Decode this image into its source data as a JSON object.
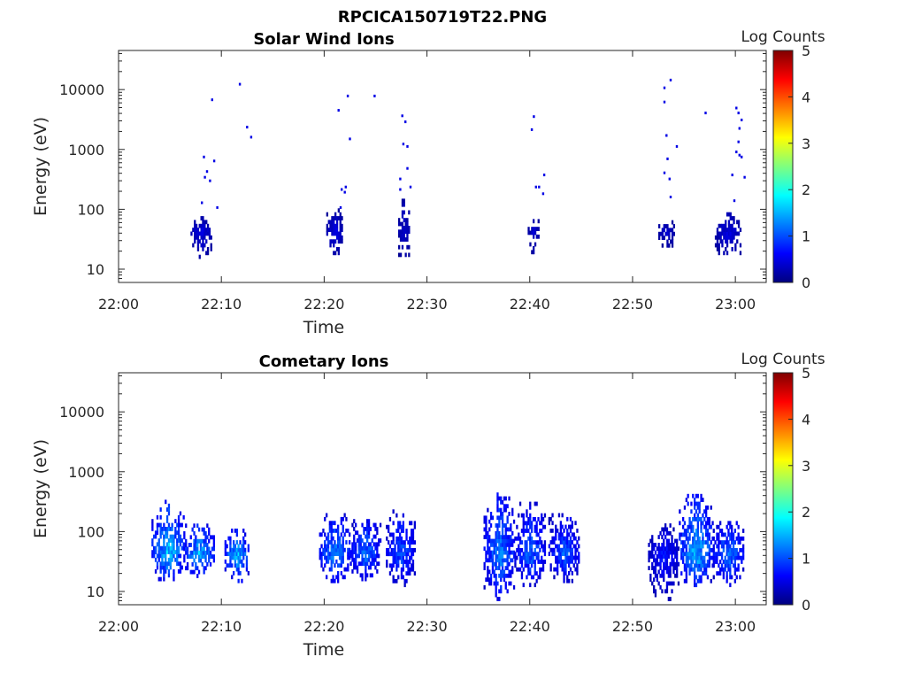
{
  "figure": {
    "title": "RPCICA150719T22.PNG"
  },
  "colormap": {
    "name": "jet",
    "stops": [
      "#00007f",
      "#0000ff",
      "#007fff",
      "#00ffff",
      "#7fff7f",
      "#ffff00",
      "#ff7f00",
      "#ff0000",
      "#7f0000"
    ]
  },
  "chart_data": [
    {
      "type": "heatmap",
      "title": "Solar Wind Ions",
      "xlabel": "Time",
      "ylabel": "Energy (eV)",
      "x_range_minutes": [
        0,
        63
      ],
      "x_ticks": [
        "22:00",
        "22:10",
        "22:20",
        "22:30",
        "22:40",
        "22:50",
        "23:00"
      ],
      "x_tick_minutes": [
        0,
        10,
        20,
        30,
        40,
        50,
        60
      ],
      "y_scale": "log",
      "y_range_eV": [
        6,
        45000
      ],
      "y_ticks": [
        "10",
        "100",
        "1000",
        "10000"
      ],
      "y_tick_values": [
        10,
        100,
        1000,
        10000
      ],
      "colorbar": {
        "label": "Log Counts",
        "range": [
          0,
          5
        ],
        "ticks": [
          "0",
          "1",
          "2",
          "3",
          "4",
          "5"
        ]
      },
      "clusters": [
        {
          "t_start": 7.0,
          "t_end": 9.0,
          "e_low": 15,
          "e_high": 70,
          "peak_log": 0.6
        },
        {
          "t_start": 20.2,
          "t_end": 21.8,
          "e_low": 15,
          "e_high": 90,
          "peak_log": 0.6
        },
        {
          "t_start": 27.2,
          "t_end": 28.2,
          "e_low": 12,
          "e_high": 150,
          "peak_log": 0.5
        },
        {
          "t_start": 39.8,
          "t_end": 40.8,
          "e_low": 18,
          "e_high": 70,
          "peak_log": 0.5
        },
        {
          "t_start": 52.5,
          "t_end": 54.0,
          "e_low": 20,
          "e_high": 60,
          "peak_log": 0.5
        },
        {
          "t_start": 58.0,
          "t_end": 60.5,
          "e_low": 15,
          "e_high": 80,
          "peak_log": 0.6
        }
      ],
      "points": [
        {
          "t": 8.2,
          "e": 700,
          "log": 0.5
        },
        {
          "t": 8.5,
          "e": 400,
          "log": 0.5
        },
        {
          "t": 8.8,
          "e": 280,
          "log": 0.5
        },
        {
          "t": 9.0,
          "e": 6300,
          "log": 0.5
        },
        {
          "t": 9.2,
          "e": 600,
          "log": 0.5
        },
        {
          "t": 9.5,
          "e": 100,
          "log": 0.5
        },
        {
          "t": 11.7,
          "e": 11500,
          "log": 0.5
        },
        {
          "t": 12.4,
          "e": 2200,
          "log": 0.5
        },
        {
          "t": 12.8,
          "e": 1500,
          "log": 0.5
        },
        {
          "t": 8.3,
          "e": 320,
          "log": 0.5
        },
        {
          "t": 8.0,
          "e": 120,
          "log": 0.5
        },
        {
          "t": 21.3,
          "e": 4200,
          "log": 0.5
        },
        {
          "t": 21.6,
          "e": 200,
          "log": 0.5
        },
        {
          "t": 21.9,
          "e": 180,
          "log": 0.5
        },
        {
          "t": 22.2,
          "e": 7300,
          "log": 0.5
        },
        {
          "t": 22.4,
          "e": 1400,
          "log": 0.5
        },
        {
          "t": 22.0,
          "e": 220,
          "log": 0.5
        },
        {
          "t": 24.8,
          "e": 7300,
          "log": 0.5
        },
        {
          "t": 21.5,
          "e": 100,
          "log": 0.5
        },
        {
          "t": 27.5,
          "e": 3400,
          "log": 0.5
        },
        {
          "t": 27.8,
          "e": 2700,
          "log": 0.5
        },
        {
          "t": 27.6,
          "e": 1150,
          "log": 0.5
        },
        {
          "t": 28.0,
          "e": 1050,
          "log": 0.5
        },
        {
          "t": 28.0,
          "e": 450,
          "log": 0.5
        },
        {
          "t": 28.3,
          "e": 220,
          "log": 0.5
        },
        {
          "t": 27.3,
          "e": 300,
          "log": 0.5
        },
        {
          "t": 27.3,
          "e": 200,
          "log": 0.5
        },
        {
          "t": 40.3,
          "e": 3300,
          "log": 0.5
        },
        {
          "t": 40.1,
          "e": 2000,
          "log": 0.5
        },
        {
          "t": 40.5,
          "e": 220,
          "log": 0.5
        },
        {
          "t": 40.8,
          "e": 220,
          "log": 0.5
        },
        {
          "t": 41.3,
          "e": 350,
          "log": 0.5
        },
        {
          "t": 41.2,
          "e": 170,
          "log": 0.5
        },
        {
          "t": 53.0,
          "e": 10000,
          "log": 0.5
        },
        {
          "t": 53.6,
          "e": 13500,
          "log": 0.5
        },
        {
          "t": 53.0,
          "e": 5800,
          "log": 0.5
        },
        {
          "t": 53.2,
          "e": 1600,
          "log": 0.5
        },
        {
          "t": 54.2,
          "e": 1050,
          "log": 0.5
        },
        {
          "t": 53.3,
          "e": 650,
          "log": 0.5
        },
        {
          "t": 53.0,
          "e": 380,
          "log": 0.5
        },
        {
          "t": 53.5,
          "e": 300,
          "log": 0.5
        },
        {
          "t": 53.6,
          "e": 150,
          "log": 0.5
        },
        {
          "t": 57.0,
          "e": 3800,
          "log": 0.5
        },
        {
          "t": 60.0,
          "e": 4600,
          "log": 0.5
        },
        {
          "t": 60.2,
          "e": 3800,
          "log": 0.5
        },
        {
          "t": 60.5,
          "e": 2900,
          "log": 0.5
        },
        {
          "t": 60.3,
          "e": 2100,
          "log": 0.5
        },
        {
          "t": 60.2,
          "e": 1250,
          "log": 0.5
        },
        {
          "t": 60.0,
          "e": 850,
          "log": 0.5
        },
        {
          "t": 60.5,
          "e": 700,
          "log": 0.5
        },
        {
          "t": 60.3,
          "e": 750,
          "log": 0.5
        },
        {
          "t": 59.6,
          "e": 350,
          "log": 0.5
        },
        {
          "t": 60.8,
          "e": 320,
          "log": 0.5
        },
        {
          "t": 59.8,
          "e": 130,
          "log": 0.5
        }
      ]
    },
    {
      "type": "heatmap",
      "title": "Cometary Ions",
      "xlabel": "Time",
      "ylabel": "Energy (eV)",
      "x_range_minutes": [
        0,
        63
      ],
      "x_ticks": [
        "22:00",
        "22:10",
        "22:20",
        "22:30",
        "22:40",
        "22:50",
        "23:00"
      ],
      "x_tick_minutes": [
        0,
        10,
        20,
        30,
        40,
        50,
        60
      ],
      "y_scale": "log",
      "y_range_eV": [
        6,
        45000
      ],
      "y_ticks": [
        "10",
        "100",
        "1000",
        "10000"
      ],
      "y_tick_values": [
        10,
        100,
        1000,
        10000
      ],
      "colorbar": {
        "label": "Log Counts",
        "range": [
          0,
          5
        ],
        "ticks": [
          "0",
          "1",
          "2",
          "3",
          "4",
          "5"
        ]
      },
      "clusters": [
        {
          "t_start": 3.2,
          "t_end": 6.3,
          "e_low": 15,
          "e_high": 300,
          "peak_log": 2.0
        },
        {
          "t_start": 6.3,
          "t_end": 9.2,
          "e_low": 17,
          "e_high": 130,
          "peak_log": 1.9
        },
        {
          "t_start": 10.3,
          "t_end": 12.6,
          "e_low": 14,
          "e_high": 100,
          "peak_log": 1.9
        },
        {
          "t_start": 19.5,
          "t_end": 22.5,
          "e_low": 14,
          "e_high": 200,
          "peak_log": 1.6
        },
        {
          "t_start": 22.5,
          "t_end": 25.5,
          "e_low": 15,
          "e_high": 150,
          "peak_log": 1.5
        },
        {
          "t_start": 26.0,
          "t_end": 28.8,
          "e_low": 12,
          "e_high": 230,
          "peak_log": 1.3
        },
        {
          "t_start": 35.5,
          "t_end": 38.5,
          "e_low": 7,
          "e_high": 450,
          "peak_log": 1.6
        },
        {
          "t_start": 38.5,
          "t_end": 41.5,
          "e_low": 12,
          "e_high": 300,
          "peak_log": 1.4
        },
        {
          "t_start": 41.8,
          "t_end": 44.8,
          "e_low": 14,
          "e_high": 200,
          "peak_log": 1.3
        },
        {
          "t_start": 51.5,
          "t_end": 54.5,
          "e_low": 7,
          "e_high": 120,
          "peak_log": 0.9
        },
        {
          "t_start": 54.5,
          "t_end": 57.8,
          "e_low": 12,
          "e_high": 400,
          "peak_log": 1.9
        },
        {
          "t_start": 57.8,
          "t_end": 60.8,
          "e_low": 12,
          "e_high": 150,
          "peak_log": 1.5
        }
      ],
      "points": []
    }
  ]
}
